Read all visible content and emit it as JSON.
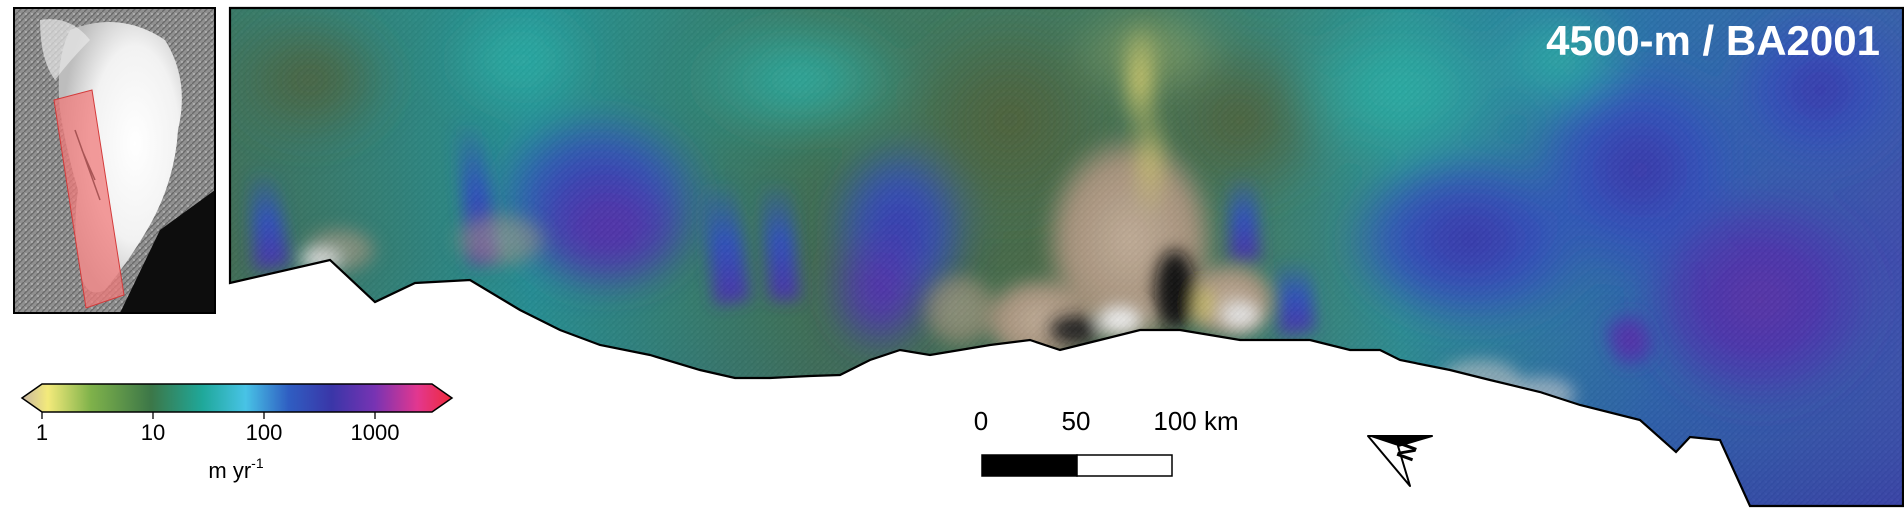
{
  "map_title": "4500-m / BA2001",
  "colorbar": {
    "ticks": [
      "1",
      "10",
      "100",
      "1000"
    ],
    "unit_base": "m yr",
    "unit_exp": "-1",
    "scale": "log",
    "colors": [
      "#c9b7a2",
      "#f3ea7b",
      "#7fb24a",
      "#3c7748",
      "#1fa89a",
      "#48c3e6",
      "#2f5ec2",
      "#3a36a8",
      "#7733b3",
      "#e3378f",
      "#ee2a3a"
    ]
  },
  "scalebar": {
    "labels": [
      "0",
      "50",
      "100 km"
    ],
    "colors": [
      "#000000",
      "#ffffff"
    ]
  },
  "north_arrow": {
    "label": "N"
  },
  "inset": {
    "highlight_color": "#f07b7b"
  },
  "palette": {
    "sand": "#bfa88d",
    "olive": "#4f6a44",
    "teal": "#1fa3a0",
    "blue": "#2f4fb8",
    "violet": "#5a3aa8"
  }
}
